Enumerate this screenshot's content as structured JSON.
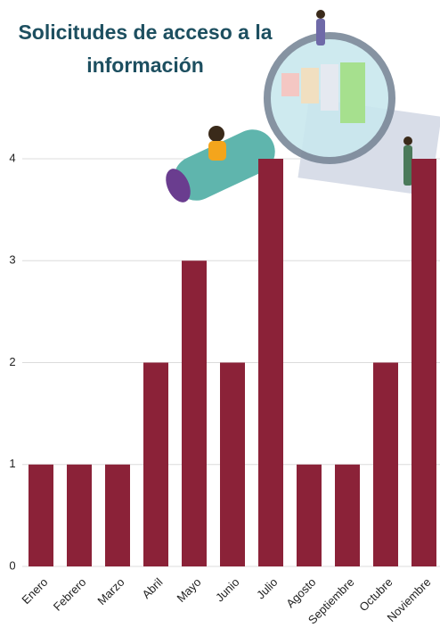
{
  "chart_data": {
    "type": "bar",
    "title": "Solicitudes de acceso a la información",
    "categories": [
      "Enero",
      "Febrero",
      "Marzo",
      "Abril",
      "Mayo",
      "Junio",
      "Julio",
      "Agosto",
      "Septiembre",
      "Octubre",
      "Noviembre"
    ],
    "values": [
      1,
      1,
      1,
      2,
      3,
      2,
      4,
      1,
      1,
      2,
      4
    ],
    "color": "#8b2238",
    "ylim": [
      0,
      4
    ],
    "yticks": [
      0,
      1,
      2,
      3,
      4
    ],
    "grid": true
  }
}
